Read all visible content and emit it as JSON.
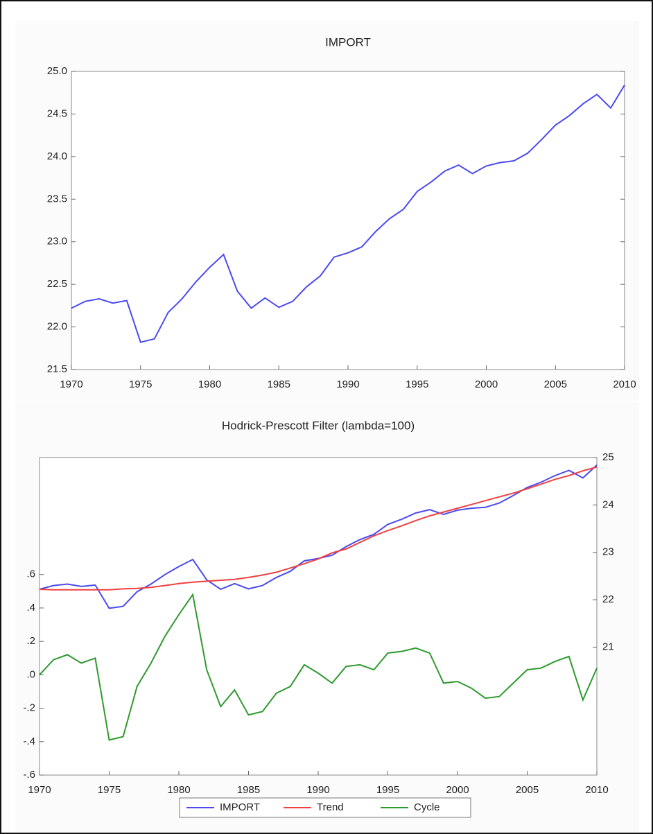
{
  "chart_data": [
    {
      "type": "line",
      "title": "IMPORT",
      "x": [
        1970,
        1971,
        1972,
        1973,
        1974,
        1975,
        1976,
        1977,
        1978,
        1979,
        1980,
        1981,
        1982,
        1983,
        1984,
        1985,
        1986,
        1987,
        1988,
        1989,
        1990,
        1991,
        1992,
        1993,
        1994,
        1995,
        1996,
        1997,
        1998,
        1999,
        2000,
        2001,
        2002,
        2003,
        2004,
        2005,
        2006,
        2007,
        2008,
        2009,
        2010
      ],
      "series": [
        {
          "name": "IMPORT",
          "color": "#4a4af0",
          "values": [
            22.22,
            22.3,
            22.33,
            22.28,
            22.31,
            21.82,
            21.86,
            22.17,
            22.33,
            22.53,
            22.7,
            22.85,
            22.42,
            22.22,
            22.34,
            22.23,
            22.3,
            22.47,
            22.6,
            22.82,
            22.87,
            22.94,
            23.12,
            23.27,
            23.38,
            23.59,
            23.7,
            23.83,
            23.9,
            23.8,
            23.89,
            23.93,
            23.95,
            24.04,
            24.2,
            24.37,
            24.48,
            24.62,
            24.73,
            24.57,
            24.84
          ]
        }
      ],
      "xlim": [
        1970,
        2010
      ],
      "xticks": [
        1970,
        1975,
        1980,
        1985,
        1990,
        1995,
        2000,
        2005,
        2010
      ],
      "ylim": [
        21.5,
        25.0
      ],
      "yticks": [
        21.5,
        {
          "value": 22,
          "label": "22.0"
        },
        22.5,
        {
          "value": 23,
          "label": "23.0"
        },
        23.5,
        {
          "value": 24,
          "label": "24.0"
        },
        24.5,
        {
          "value": 25,
          "label": "25.0"
        }
      ],
      "grid": false
    },
    {
      "type": "line",
      "title": "Hodrick-Prescott Filter (lambda=100)",
      "x": [
        1970,
        1971,
        1972,
        1973,
        1974,
        1975,
        1976,
        1977,
        1978,
        1979,
        1980,
        1981,
        1982,
        1983,
        1984,
        1985,
        1986,
        1987,
        1988,
        1989,
        1990,
        1991,
        1992,
        1993,
        1994,
        1995,
        1996,
        1997,
        1998,
        1999,
        2000,
        2001,
        2002,
        2003,
        2004,
        2005,
        2006,
        2007,
        2008,
        2009,
        2010
      ],
      "series": [
        {
          "name": "IMPORT",
          "color": "#4a4af0",
          "axis": "y2",
          "values": [
            22.22,
            22.3,
            22.33,
            22.28,
            22.31,
            21.82,
            21.86,
            22.17,
            22.33,
            22.53,
            22.7,
            22.85,
            22.42,
            22.22,
            22.34,
            22.23,
            22.3,
            22.47,
            22.6,
            22.82,
            22.87,
            22.94,
            23.12,
            23.27,
            23.38,
            23.59,
            23.7,
            23.83,
            23.9,
            23.8,
            23.89,
            23.93,
            23.95,
            24.04,
            24.2,
            24.37,
            24.48,
            24.62,
            24.73,
            24.57,
            24.84
          ]
        },
        {
          "name": "Trend",
          "color": "#f04040",
          "axis": "y2",
          "values": [
            22.22,
            22.21,
            22.21,
            22.21,
            22.21,
            22.21,
            22.23,
            22.24,
            22.26,
            22.3,
            22.34,
            22.37,
            22.39,
            22.41,
            22.43,
            22.47,
            22.52,
            22.58,
            22.67,
            22.76,
            22.86,
            22.99,
            23.07,
            23.21,
            23.35,
            23.46,
            23.56,
            23.67,
            23.77,
            23.85,
            23.93,
            24.01,
            24.09,
            24.17,
            24.25,
            24.34,
            24.44,
            24.54,
            24.62,
            24.72,
            24.8
          ]
        },
        {
          "name": "Cycle",
          "color": "#2e9a2e",
          "values": [
            0.0,
            0.09,
            0.12,
            0.07,
            0.1,
            -0.39,
            -0.37,
            -0.07,
            0.07,
            0.23,
            0.36,
            0.48,
            0.03,
            -0.19,
            -0.09,
            -0.24,
            -0.22,
            -0.11,
            -0.07,
            0.06,
            0.01,
            -0.05,
            0.05,
            0.06,
            0.03,
            0.13,
            0.14,
            0.16,
            0.13,
            -0.05,
            -0.04,
            -0.08,
            -0.14,
            -0.13,
            -0.05,
            0.03,
            0.04,
            0.08,
            0.11,
            -0.15,
            0.04
          ]
        }
      ],
      "xlim": [
        1970,
        2010
      ],
      "xticks": [
        1970,
        1975,
        1980,
        1985,
        1990,
        1995,
        2000,
        2005,
        2010
      ],
      "ylim": [
        -0.6,
        1.3
      ],
      "yticks": [
        {
          "value": -0.6,
          "label": "-.6"
        },
        {
          "value": -0.4,
          "label": "-.4"
        },
        {
          "value": -0.2,
          "label": "-.2"
        },
        {
          "value": 0,
          "label": ".0"
        },
        {
          "value": 0.2,
          "label": ".2"
        },
        {
          "value": 0.4,
          "label": ".4"
        },
        {
          "value": 0.6,
          "label": ".6"
        }
      ],
      "y2lim": [
        18.3,
        25
      ],
      "y2ticks": [
        21,
        22,
        23,
        24,
        25
      ],
      "grid": false,
      "legend": "bottom"
    }
  ]
}
